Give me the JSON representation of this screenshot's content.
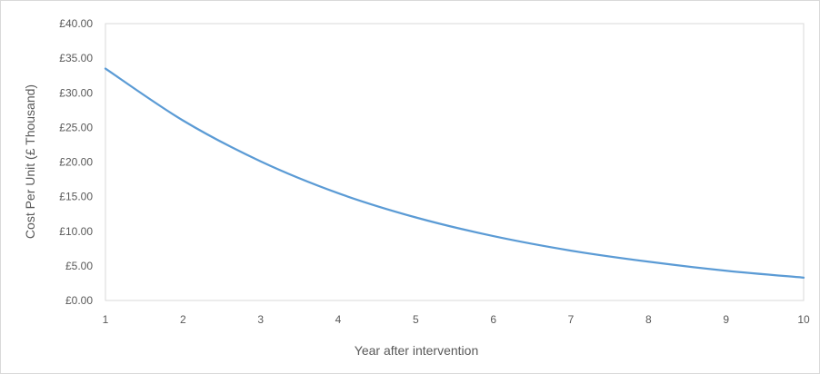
{
  "chart_data": {
    "type": "line",
    "title": "",
    "xlabel": "Year after intervention",
    "ylabel": "Cost Per Unit (£ Thousand)",
    "xlim": [
      1,
      10
    ],
    "ylim": [
      0,
      40
    ],
    "x_ticks": [
      "1",
      "2",
      "3",
      "4",
      "5",
      "6",
      "7",
      "8",
      "9",
      "10"
    ],
    "y_ticks": [
      "£0.00",
      "£5.00",
      "£10.00",
      "£15.00",
      "£20.00",
      "£25.00",
      "£30.00",
      "£35.00",
      "£40.00"
    ],
    "y_tick_values": [
      0,
      5,
      10,
      15,
      20,
      25,
      30,
      35,
      40
    ],
    "grid": false,
    "series": [
      {
        "x": [
          1,
          2,
          3,
          4,
          5,
          6,
          7,
          8,
          9,
          10
        ],
        "values": [
          33.5,
          26.0,
          20.1,
          15.5,
          12.0,
          9.3,
          7.2,
          5.6,
          4.3,
          3.3
        ],
        "color": "#5b9bd5"
      }
    ]
  }
}
